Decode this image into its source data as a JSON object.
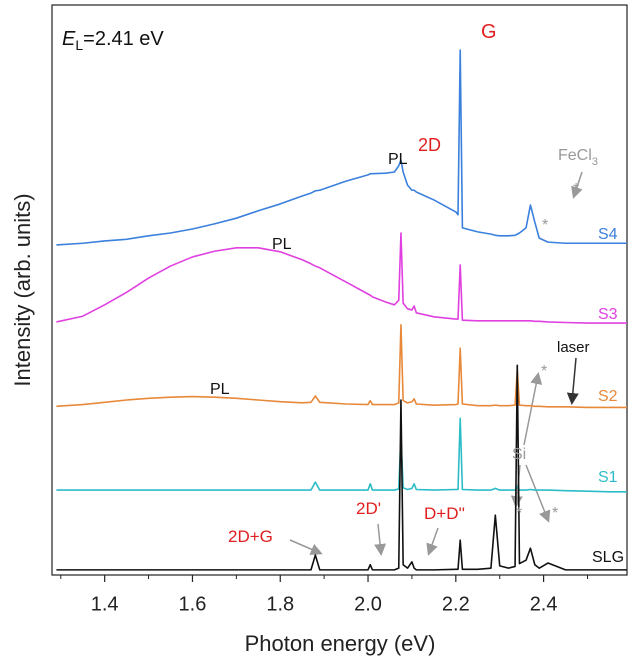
{
  "chart_data": {
    "type": "line",
    "x_label": "Photon energy (eV)",
    "y_label": "Intensity (arb. units)",
    "xlim": [
      1.28,
      2.59
    ],
    "ylim": [
      0,
      100
    ],
    "xticks": [
      1.4,
      1.6,
      1.8,
      {
        "value": 2,
        "label": "2.0"
      },
      2.2,
      2.4
    ],
    "xminor": [
      1.3,
      1.5,
      1.7,
      1.9,
      2.1,
      2.3,
      2.5
    ],
    "x": [
      1.29,
      1.35,
      1.4,
      1.45,
      1.5,
      1.55,
      1.6,
      1.65,
      1.7,
      1.75,
      1.8,
      1.85,
      1.87,
      1.88,
      1.89,
      1.95,
      2.0,
      2.005,
      2.01,
      2.04,
      2.06,
      2.07,
      2.075,
      2.08,
      2.09,
      2.1,
      2.105,
      2.11,
      2.15,
      2.2,
      2.205,
      2.21,
      2.215,
      2.25,
      2.28,
      2.29,
      2.3,
      2.32,
      2.335,
      2.34,
      2.345,
      2.36,
      2.37,
      2.38,
      2.39,
      2.41,
      2.45,
      2.5,
      2.55,
      2.59
    ],
    "series": [
      {
        "name": "S4",
        "color": "#3a80dc",
        "values": [
          57.9,
          58.2,
          58.6,
          58.9,
          59.5,
          60.0,
          60.7,
          61.6,
          62.6,
          63.9,
          65.1,
          66.5,
          67.0,
          67.4,
          67.5,
          69.1,
          70.2,
          70.4,
          70.4,
          70.5,
          70.7,
          71.8,
          72.8,
          70.7,
          68.4,
          67.5,
          67.5,
          67.2,
          65.8,
          63.7,
          63.2,
          92.1,
          60.9,
          60.2,
          59.8,
          59.6,
          59.5,
          59.5,
          59.6,
          59.8,
          60.0,
          60.9,
          64.9,
          61.9,
          59.1,
          58.4,
          58.2,
          58.2,
          58.2,
          58.2
        ]
      },
      {
        "name": "S3",
        "color": "#e040e0",
        "values": [
          44.4,
          45.4,
          47.4,
          49.6,
          52.1,
          54.2,
          55.8,
          56.8,
          57.4,
          57.4,
          56.7,
          55.3,
          54.6,
          54.2,
          53.9,
          51.4,
          49.3,
          49.1,
          48.8,
          47.9,
          47.4,
          48.2,
          60.0,
          47.7,
          46.7,
          46.5,
          47.2,
          46.0,
          45.3,
          44.9,
          44.9,
          54.4,
          44.7,
          44.6,
          44.6,
          44.6,
          44.6,
          44.6,
          44.6,
          44.6,
          44.6,
          44.6,
          44.6,
          44.5,
          44.5,
          44.4,
          44.3,
          44.2,
          44.2,
          44.2
        ]
      },
      {
        "name": "S2",
        "color": "#e8893a",
        "values": [
          29.6,
          29.9,
          30.3,
          30.7,
          31.0,
          31.2,
          31.3,
          31.2,
          31.0,
          30.7,
          30.4,
          30.2,
          30.3,
          31.4,
          30.3,
          30.0,
          29.9,
          30.6,
          29.9,
          29.9,
          29.9,
          30.2,
          43.9,
          30.6,
          30.2,
          30.4,
          30.9,
          30.0,
          29.8,
          29.9,
          30.0,
          39.8,
          30.0,
          29.7,
          29.7,
          29.8,
          29.7,
          29.7,
          29.8,
          36.0,
          29.8,
          29.7,
          29.7,
          29.6,
          29.6,
          29.5,
          29.5,
          29.4,
          29.4,
          29.4
        ]
      },
      {
        "name": "S1",
        "color": "#2cbcc8",
        "values": [
          14.9,
          14.9,
          14.9,
          14.9,
          14.9,
          14.9,
          14.9,
          14.9,
          14.9,
          14.9,
          14.9,
          14.9,
          14.9,
          16.3,
          14.9,
          14.9,
          14.9,
          16.0,
          14.9,
          14.9,
          14.9,
          15.1,
          24.6,
          15.3,
          15.0,
          15.2,
          16.0,
          15.0,
          14.9,
          15.0,
          15.0,
          27.5,
          15.0,
          14.9,
          14.9,
          15.2,
          14.9,
          14.9,
          14.9,
          15.5,
          14.9,
          14.9,
          15.0,
          14.9,
          14.9,
          14.9,
          14.8,
          14.7,
          14.6,
          14.6
        ]
      },
      {
        "name": "SLG",
        "color": "#111111",
        "values": [
          0.9,
          0.9,
          0.9,
          0.9,
          0.9,
          0.9,
          0.9,
          0.9,
          0.9,
          0.9,
          0.9,
          0.9,
          0.9,
          3.5,
          0.9,
          0.9,
          0.9,
          1.8,
          0.9,
          0.9,
          0.9,
          1.2,
          30.7,
          1.8,
          1.2,
          2.3,
          1.2,
          0.9,
          0.9,
          1.0,
          1.0,
          6.1,
          1.0,
          1.0,
          1.2,
          10.5,
          1.6,
          1.2,
          1.5,
          36.8,
          2.0,
          2.6,
          4.7,
          1.8,
          1.2,
          2.1,
          0.9,
          0.9,
          0.9,
          0.9
        ]
      }
    ],
    "annotations": [
      {
        "text": "E",
        "sub": "L",
        "tail": "=2.41 eV",
        "color": "#111111"
      },
      {
        "text": "G",
        "color": "#e02020"
      },
      {
        "text": "2D",
        "color": "#e02020"
      },
      {
        "text": "PL",
        "color": "#111111"
      },
      {
        "text": "PL",
        "color": "#111111"
      },
      {
        "text": "PL",
        "color": "#111111"
      },
      {
        "text": "FeCl",
        "sub": "3",
        "color": "#999999"
      },
      {
        "text": "*",
        "color": "#999999"
      },
      {
        "text": "*",
        "color": "#999999"
      },
      {
        "text": "laser",
        "color": "#111111"
      },
      {
        "text": "Si",
        "color": "#999999"
      },
      {
        "text": "*",
        "color": "#999999"
      },
      {
        "text": "*",
        "color": "#999999"
      },
      {
        "text": "*",
        "color": "#999999"
      },
      {
        "text": "2D+G",
        "color": "#e02020"
      },
      {
        "text": "2D'",
        "color": "#e02020"
      },
      {
        "text": "D+D''",
        "color": "#e02020"
      }
    ]
  }
}
